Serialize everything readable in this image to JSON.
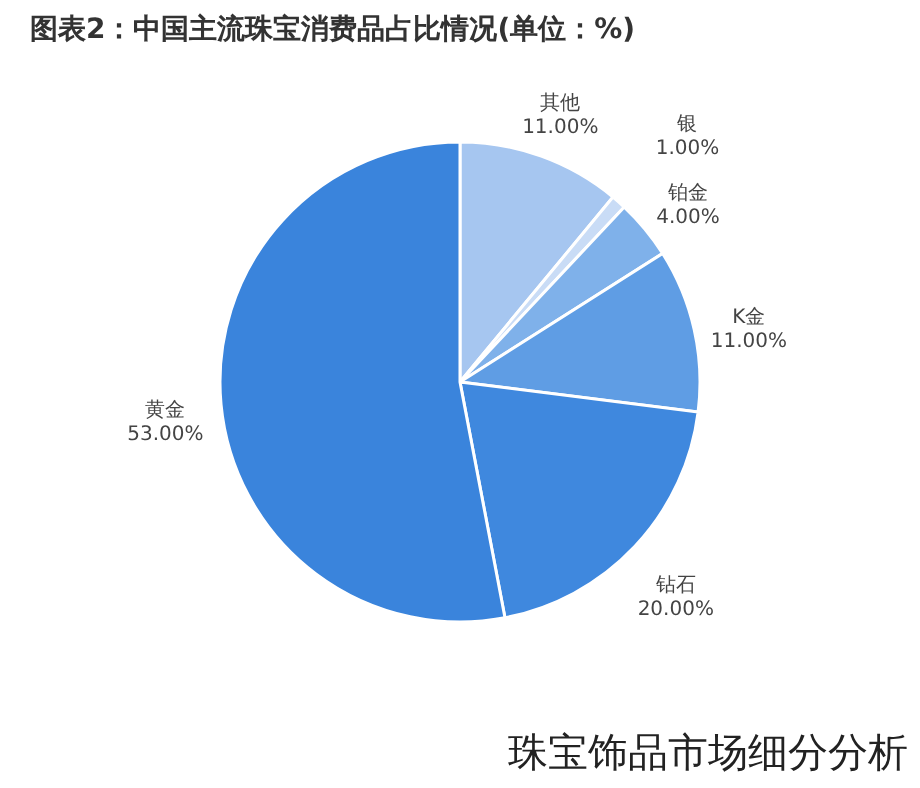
{
  "chart_data": {
    "type": "pie",
    "title": "图表2：中国主流珠宝消费品占比情况(单位：%)",
    "categories": [
      "其他",
      "银",
      "铂金",
      "K金",
      "钻石",
      "黄金"
    ],
    "values": [
      11,
      1,
      4,
      11,
      20,
      53
    ],
    "value_labels": [
      "11.00%",
      "1.00%",
      "4.00%",
      "11.00%",
      "20.00%",
      "53.00%"
    ],
    "colors": [
      "#a6c6f0",
      "#c9dcf6",
      "#7fb1ea",
      "#5f9de4",
      "#3f88de",
      "#3a84dc"
    ],
    "annotations": [
      "珠宝饰品市场细分分析"
    ]
  }
}
